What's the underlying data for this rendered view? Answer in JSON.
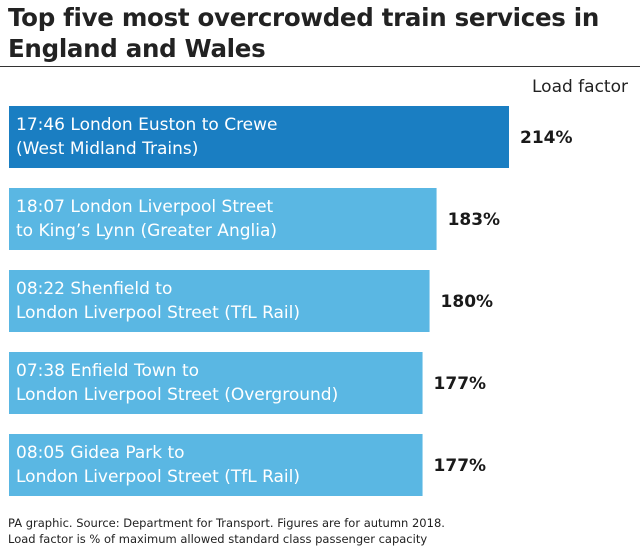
{
  "title": "Top five most overcrowded train services in England and Wales",
  "column_header": "Load factor",
  "footer": {
    "source": "PA graphic. Source: Department for Transport. Figures are for autumn 2018.",
    "note": "Load factor is % of maximum allowed standard class passenger capacity"
  },
  "colors": {
    "highlight_bar": "#1a7ec2",
    "bar": "#5ab7e3",
    "bar_text": "#ffffff",
    "value_text": "#1a1a1a"
  },
  "chart_data": {
    "type": "bar",
    "orientation": "horizontal",
    "unit": "%",
    "value_axis_label": "Load factor",
    "categories": [
      [
        "17:46 London Euston to Crewe",
        "(West Midland Trains)"
      ],
      [
        "18:07 London Liverpool Street",
        "to King’s Lynn (Greater Anglia)"
      ],
      [
        "08:22 Shenfield to",
        "London Liverpool Street (TfL Rail)"
      ],
      [
        "07:38 Enfield Town to",
        "London Liverpool Street (Overground)"
      ],
      [
        "08:05 Gidea Park to",
        "London Liverpool Street (TfL Rail)"
      ]
    ],
    "values": [
      214,
      183,
      180,
      177,
      177
    ],
    "value_labels": [
      "214%",
      "183%",
      "180%",
      "177%",
      "177%"
    ],
    "highlighted_index": 0,
    "xlim": [
      0,
      214
    ],
    "grid": false,
    "axes_visible": false
  }
}
